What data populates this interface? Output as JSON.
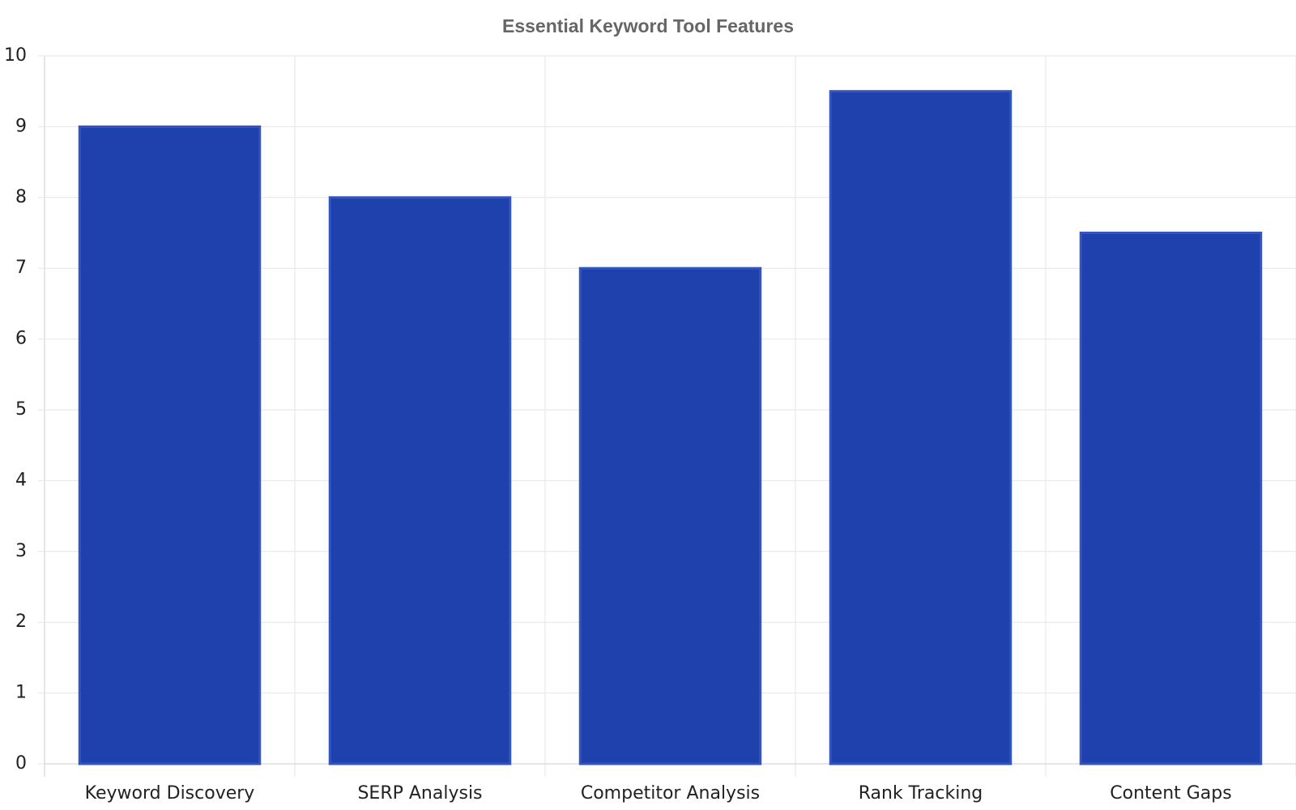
{
  "chart_data": {
    "type": "bar",
    "title": "Essential Keyword Tool Features",
    "categories": [
      "Keyword Discovery",
      "SERP Analysis",
      "Competitor Analysis",
      "Rank Tracking",
      "Content Gaps"
    ],
    "values": [
      9,
      8,
      7,
      9.5,
      7.5
    ],
    "color": "#1f41ad",
    "ylim": [
      0,
      10
    ],
    "yticks": [
      0,
      1,
      2,
      3,
      4,
      5,
      6,
      7,
      8,
      9,
      10
    ],
    "grid": true
  }
}
